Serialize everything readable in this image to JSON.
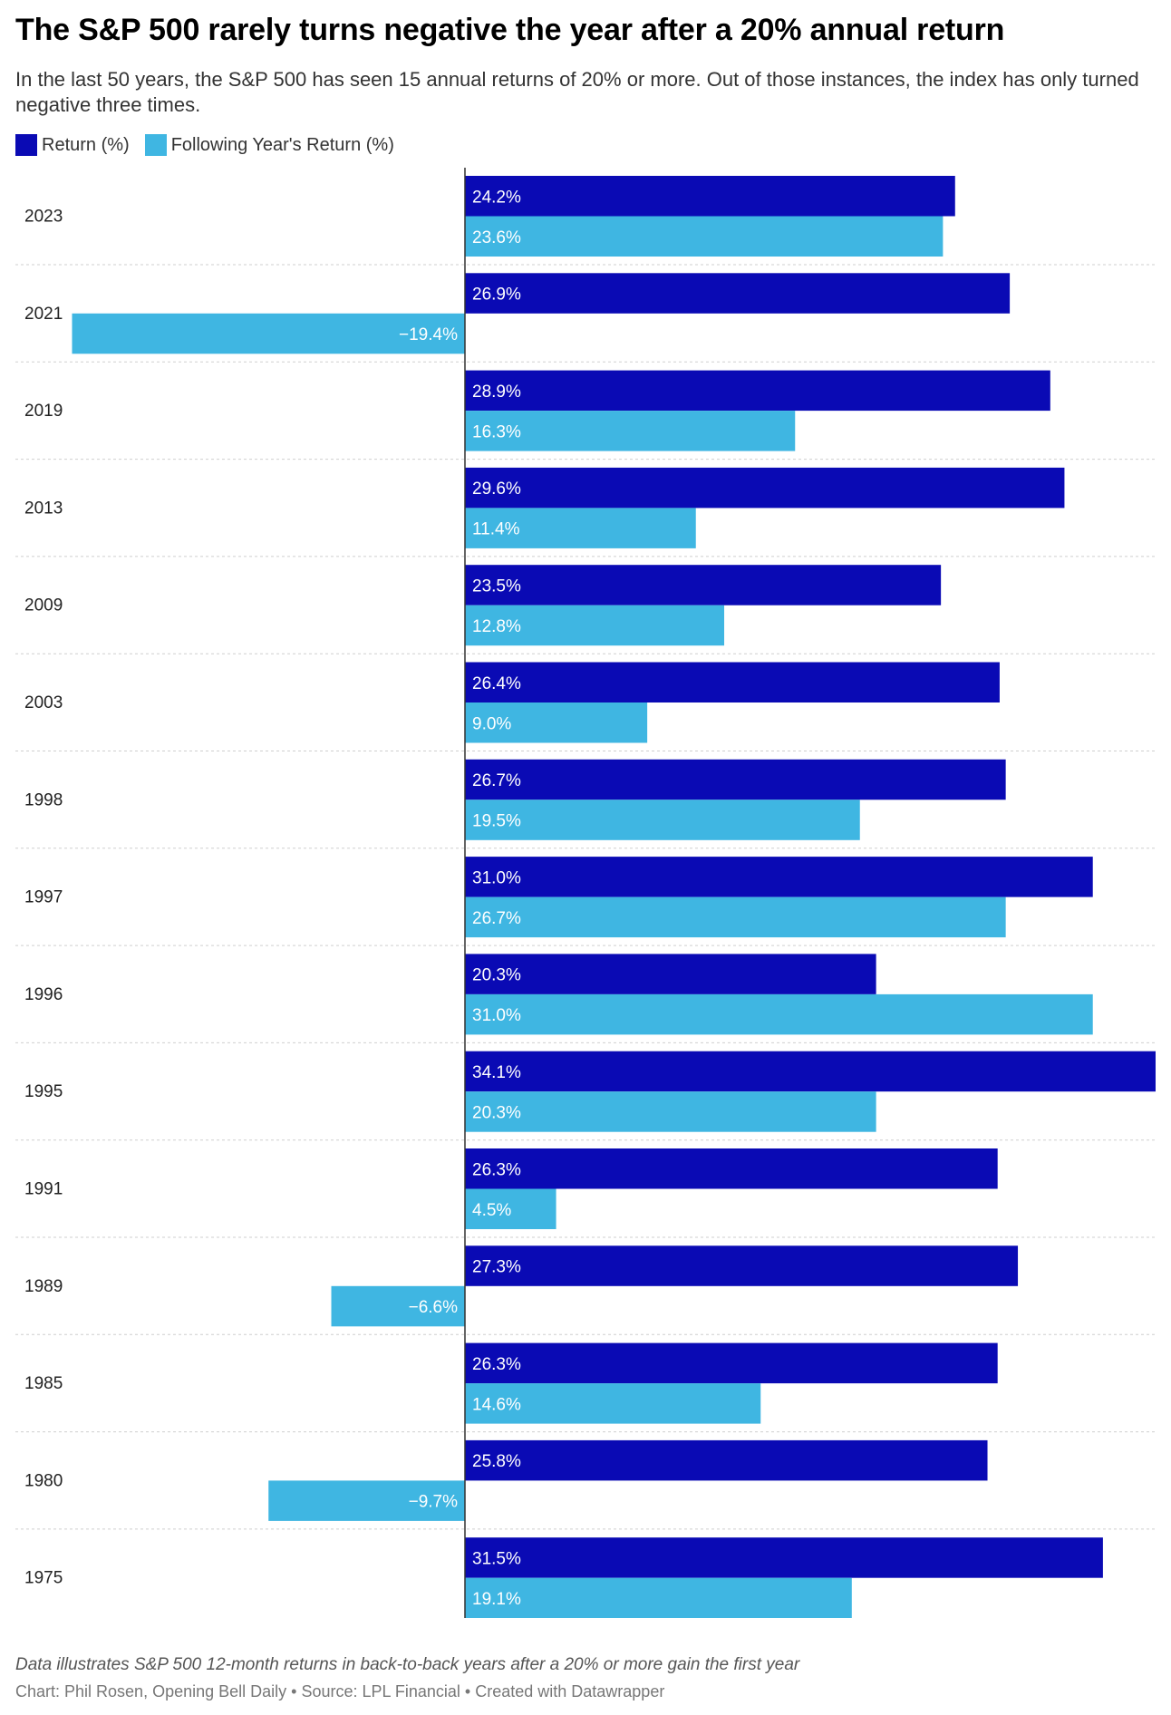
{
  "title": "The S&P 500 rarely turns negative the year after a 20% annual return",
  "subtitle": "In the last 50 years, the S&P 500 has seen 15 annual returns of 20% or more. Out of those instances, the index has only turned negative three times.",
  "legend": {
    "return_label": "Return (%)",
    "following_label": "Following Year's Return (%)"
  },
  "colors": {
    "return": "#0a0ab4",
    "following": "#3fb6e2",
    "grid": "#cfcfcf",
    "axis": "#333333"
  },
  "chart_data": {
    "type": "bar",
    "orientation": "horizontal",
    "categories": [
      "2023",
      "2021",
      "2019",
      "2013",
      "2009",
      "2003",
      "1998",
      "1997",
      "1996",
      "1995",
      "1991",
      "1989",
      "1985",
      "1980",
      "1975"
    ],
    "series": [
      {
        "name": "Return (%)",
        "values": [
          24.2,
          26.9,
          28.9,
          29.6,
          23.5,
          26.4,
          26.7,
          31.0,
          20.3,
          34.1,
          26.3,
          27.3,
          26.3,
          25.8,
          31.5
        ],
        "labels": [
          "24.2%",
          "26.9%",
          "28.9%",
          "29.6%",
          "23.5%",
          "26.4%",
          "26.7%",
          "31.0%",
          "20.3%",
          "34.1%",
          "26.3%",
          "27.3%",
          "26.3%",
          "25.8%",
          "31.5%"
        ]
      },
      {
        "name": "Following Year's Return (%)",
        "values": [
          23.6,
          -19.4,
          16.3,
          11.4,
          12.8,
          9.0,
          19.5,
          26.7,
          31.0,
          20.3,
          4.5,
          -6.6,
          14.6,
          -9.7,
          19.1
        ],
        "labels": [
          "23.6%",
          "−19.4%",
          "16.3%",
          "11.4%",
          "12.8%",
          "9.0%",
          "19.5%",
          "26.7%",
          "31.0%",
          "20.3%",
          "4.5%",
          "−6.6%",
          "14.6%",
          "−9.7%",
          "19.1%"
        ]
      }
    ],
    "xlim": [
      -19.4,
      34.1
    ],
    "grid": false
  },
  "footer": {
    "note": "Data illustrates S&P 500 12-month returns in back-to-back years after a 20% or more gain the first year",
    "credit_chart": "Chart: Phil Rosen, Opening Bell Daily",
    "credit_source": "Source: LPL Financial",
    "credit_tool": "Created with Datawrapper",
    "separator": " • "
  }
}
